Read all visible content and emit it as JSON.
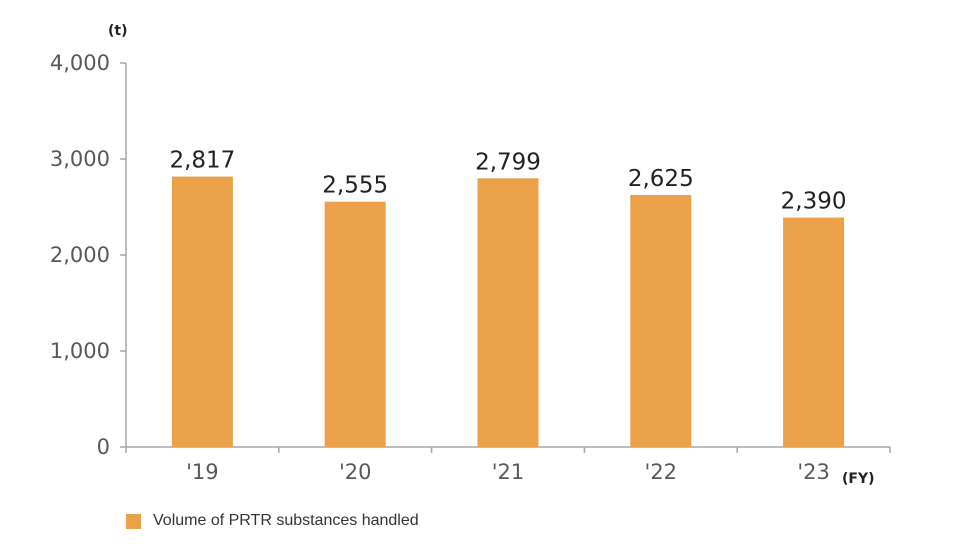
{
  "chart_data": {
    "type": "bar",
    "categories": [
      "'19",
      "'20",
      "'21",
      "'22",
      "'23"
    ],
    "series": [
      {
        "name": "Volume of PRTR substances handled",
        "values": [
          2817,
          2555,
          2799,
          2625,
          2390
        ],
        "value_labels": [
          "2,817",
          "2,555",
          "2,799",
          "2,625",
          "2,390"
        ],
        "color": "#EBA04A"
      }
    ],
    "ylabel": "(t)",
    "xlabel": "(FY)",
    "ylim": [
      0,
      4000
    ],
    "yticks": [
      0,
      1000,
      2000,
      3000,
      4000
    ],
    "ytick_labels": [
      "0",
      "1,000",
      "2,000",
      "3,000",
      "4,000"
    ],
    "grid": false,
    "legend_position": "bottom-left",
    "axis_color": "#A6A6A6"
  }
}
